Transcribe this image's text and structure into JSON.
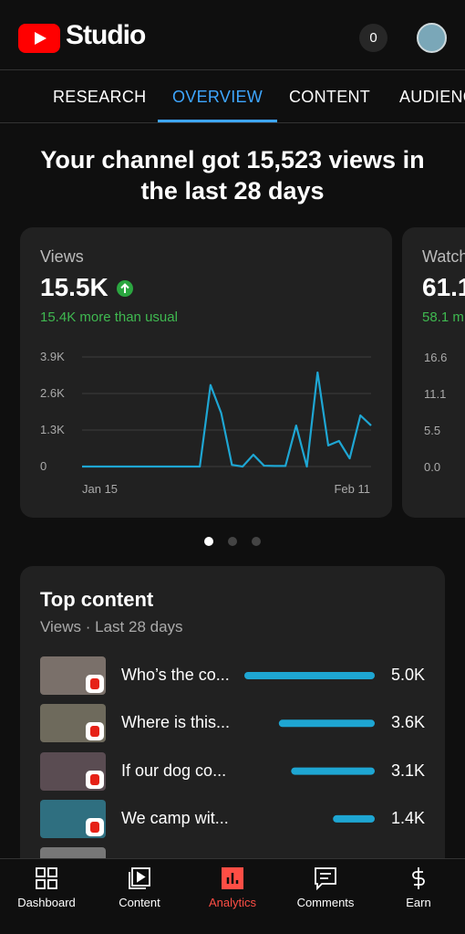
{
  "header": {
    "logo_text": "Studio",
    "notification_count": "0"
  },
  "tabs": [
    "RESEARCH",
    "OVERVIEW",
    "CONTENT",
    "AUDIENC"
  ],
  "active_tab": 1,
  "headline": "Your channel got 15,523 views in the last 28 days",
  "views_card": {
    "title": "Views",
    "value": "15.5K",
    "note": "15.4K more than usual",
    "chart": {
      "type": "line",
      "color": "#1ea6d3",
      "values": [
        0,
        0,
        0,
        0,
        0,
        0,
        0,
        0,
        0,
        0,
        0,
        0,
        2900,
        1900,
        60,
        0,
        420,
        30,
        20,
        20,
        1460,
        0,
        3350,
        750,
        910,
        290,
        1820,
        1460
      ],
      "ylim": [
        0,
        3900
      ],
      "yticks": [
        0,
        {
          "value": 1300,
          "label": "1.3K"
        },
        {
          "value": 2600,
          "label": "2.6K"
        },
        {
          "value": 3900,
          "label": "3.9K"
        }
      ],
      "xtick_labels": [
        "Jan 15",
        "Feb 11"
      ],
      "grid": true
    }
  },
  "watch_card": {
    "title": "Watch",
    "value": "61.1",
    "note": "58.1 m",
    "yticks": [
      "16.6",
      "11.1",
      "5.5",
      "0.0"
    ]
  },
  "top_content": {
    "title": "Top content",
    "subtitle": "Views · Last 28 days",
    "color": "#1ea6d3",
    "items": [
      {
        "title": "Who’s the co...",
        "value": 5000,
        "value_label": "5.0K"
      },
      {
        "title": "Where is this...",
        "value": 3600,
        "value_label": "3.6K"
      },
      {
        "title": "If our dog co...",
        "value": 3100,
        "value_label": "3.1K"
      },
      {
        "title": "We camp wit...",
        "value": 1400,
        "value_label": "1.4K"
      }
    ]
  },
  "nav": [
    "Dashboard",
    "Content",
    "Analytics",
    "Comments",
    "Earn"
  ],
  "active_nav": 2
}
